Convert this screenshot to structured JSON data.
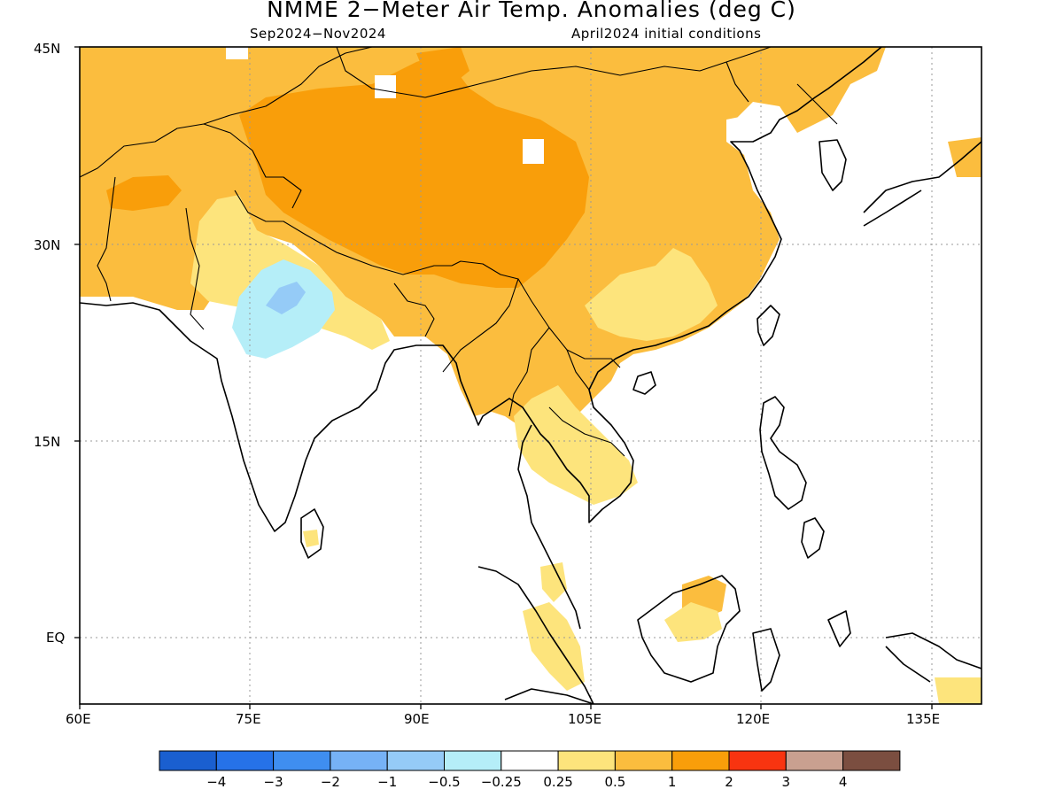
{
  "header": {
    "title": "NMME 2−Meter Air Temp. Anomalies (deg C)",
    "period": "Sep2024−Nov2024",
    "initial_conditions": "April2024 initial conditions"
  },
  "map": {
    "lat_labels": [
      "45N",
      "30N",
      "15N",
      "EQ"
    ],
    "lon_labels": [
      "60E",
      "75E",
      "90E",
      "105E",
      "120E",
      "135E"
    ],
    "lat_range": [
      -5,
      45
    ],
    "lon_range": [
      60,
      140
    ],
    "grid_style": "dotted"
  },
  "colorbar": {
    "labels": [
      "−4",
      "−3",
      "−2",
      "−1",
      "−0.5",
      "−0.25",
      "0.25",
      "0.5",
      "1",
      "2",
      "3",
      "4"
    ],
    "colors": [
      "#1a5fd0",
      "#2672e8",
      "#3f8ef0",
      "#76b2f6",
      "#95cbf7",
      "#b5eef8",
      "#ffffff",
      "#fde47c",
      "#fbbd3e",
      "#f99e0a",
      "#f83410",
      "#c9a090",
      "#7b4e40"
    ]
  },
  "colors": {
    "anom_0_25_0_5": "#fde47c",
    "anom_0_5_1": "#fbbd3e",
    "anom_1_2": "#f99e0a",
    "anom_2_3": "#f83410",
    "anom_neg_0_5_neg_0_25": "#b5eef8",
    "anom_neg_1_neg_0_5": "#95cbf7",
    "anom_neg_2_neg_1": "#76b2f6"
  }
}
